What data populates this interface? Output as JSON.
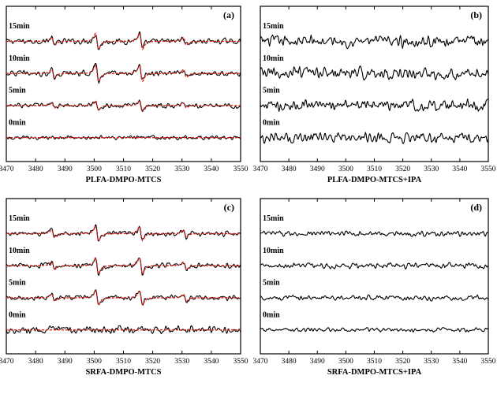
{
  "chart_data": [
    {
      "type": "line",
      "panel": "(a)",
      "xlabel": "PLFA-DMPO-MTCS",
      "xlim": [
        3470,
        3550
      ],
      "xticks": [
        3470,
        3480,
        3490,
        3500,
        3510,
        3520,
        3530,
        3540,
        3550
      ],
      "traces": [
        {
          "label": "15min",
          "intensity": 1.0,
          "noise": 0.35,
          "fit": true
        },
        {
          "label": "10min",
          "intensity": 1.0,
          "noise": 0.35,
          "fit": true
        },
        {
          "label": "5min",
          "intensity": 0.6,
          "noise": 0.3,
          "fit": true
        },
        {
          "label": "0min",
          "intensity": 0.0,
          "noise": 0.25,
          "fit": true
        }
      ],
      "peaks": [
        3486,
        3501,
        3516,
        3531
      ],
      "peak_ratio": [
        1,
        2,
        2,
        1
      ],
      "series": [
        {
          "name": "experimental",
          "color": "#000000"
        },
        {
          "name": "simulated",
          "color": "#e0201b"
        }
      ]
    },
    {
      "type": "line",
      "panel": "(b)",
      "xlabel": "PLFA-DMPO-MTCS+IPA",
      "xlim": [
        3470,
        3550
      ],
      "xticks": [
        3470,
        3480,
        3490,
        3500,
        3510,
        3520,
        3530,
        3540,
        3550
      ],
      "traces": [
        {
          "label": "15min",
          "intensity": 0.0,
          "noise": 1.0,
          "fit": false
        },
        {
          "label": "10min",
          "intensity": 0.0,
          "noise": 1.0,
          "fit": false
        },
        {
          "label": "5min",
          "intensity": 0.0,
          "noise": 1.0,
          "fit": false
        },
        {
          "label": "0min",
          "intensity": 0.0,
          "noise": 0.9,
          "fit": false
        }
      ],
      "series": [
        {
          "name": "experimental",
          "color": "#000000"
        }
      ]
    },
    {
      "type": "line",
      "panel": "(c)",
      "xlabel": "SRFA-DMPO-MTCS",
      "xlim": [
        3470,
        3550
      ],
      "xticks": [
        3470,
        3480,
        3490,
        3500,
        3510,
        3520,
        3530,
        3540,
        3550
      ],
      "traces": [
        {
          "label": "15min",
          "intensity": 0.9,
          "noise": 0.3,
          "fit": true
        },
        {
          "label": "10min",
          "intensity": 1.0,
          "noise": 0.3,
          "fit": true
        },
        {
          "label": "5min",
          "intensity": 0.9,
          "noise": 0.3,
          "fit": true
        },
        {
          "label": "0min",
          "intensity": 0.0,
          "noise": 0.45,
          "fit": true
        }
      ],
      "peaks": [
        3486,
        3501,
        3516,
        3531
      ],
      "peak_ratio": [
        1,
        2,
        2,
        1
      ],
      "series": [
        {
          "name": "experimental",
          "color": "#000000"
        },
        {
          "name": "simulated",
          "color": "#e0201b"
        }
      ]
    },
    {
      "type": "line",
      "panel": "(d)",
      "xlabel": "SRFA-DMPO-MTCS+IPA",
      "xlim": [
        3470,
        3550
      ],
      "xticks": [
        3470,
        3480,
        3490,
        3500,
        3510,
        3520,
        3530,
        3540,
        3550
      ],
      "traces": [
        {
          "label": "15min",
          "intensity": 0.0,
          "noise": 0.55,
          "fit": false
        },
        {
          "label": "10min",
          "intensity": 0.0,
          "noise": 0.6,
          "fit": false
        },
        {
          "label": "5min",
          "intensity": 0.0,
          "noise": 0.55,
          "fit": false
        },
        {
          "label": "0min",
          "intensity": 0.0,
          "noise": 0.45,
          "fit": false
        }
      ],
      "series": [
        {
          "name": "experimental",
          "color": "#000000"
        }
      ]
    }
  ]
}
